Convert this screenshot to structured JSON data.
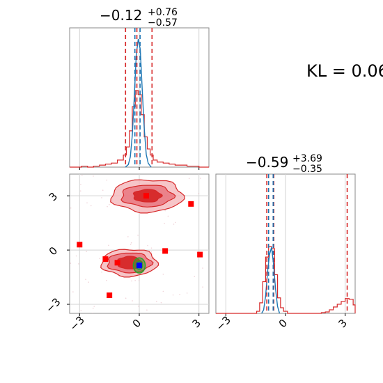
{
  "kl_label": "KL = 0.06",
  "chart_data": [
    {
      "type": "histogram",
      "panel": "marginal-param-1",
      "title": {
        "main": "−0.12",
        "plus": "+0.76",
        "minus": "−0.57"
      },
      "xlim": [
        -3.5,
        3.5
      ],
      "grid": true,
      "colors": {
        "reference": "#d62728",
        "estimate": "#1f77b4"
      },
      "series": [
        {
          "color": "#d62728",
          "bins": [
            [
              -3.5,
              0.0
            ],
            [
              -3.2,
              0.0
            ],
            [
              -2.9,
              0.005
            ],
            [
              -2.6,
              0.0
            ],
            [
              -2.3,
              0.005
            ],
            [
              -2.0,
              0.01
            ],
            [
              -1.7,
              0.015
            ],
            [
              -1.4,
              0.02
            ],
            [
              -1.1,
              0.035
            ],
            [
              -0.8,
              0.06
            ],
            [
              -0.65,
              0.1
            ],
            [
              -0.5,
              0.18
            ],
            [
              -0.35,
              0.3
            ],
            [
              -0.2,
              0.38
            ],
            [
              -0.05,
              0.36
            ],
            [
              0.1,
              0.26
            ],
            [
              0.25,
              0.15
            ],
            [
              0.4,
              0.09
            ],
            [
              0.55,
              0.06
            ],
            [
              0.7,
              0.035
            ],
            [
              0.9,
              0.025
            ],
            [
              1.2,
              0.02
            ],
            [
              1.5,
              0.015
            ],
            [
              1.8,
              0.01
            ],
            [
              2.1,
              0.01
            ],
            [
              2.4,
              0.005
            ],
            [
              2.7,
              0.005
            ],
            [
              3.0,
              0.0
            ],
            [
              3.3,
              0.0
            ],
            [
              3.5,
              0.0
            ]
          ],
          "quantiles": [
            -0.69,
            -0.12,
            0.64
          ]
        },
        {
          "color": "#1f77b4",
          "curve": [
            [
              -0.7,
              0.0
            ],
            [
              -0.55,
              0.02
            ],
            [
              -0.45,
              0.08
            ],
            [
              -0.35,
              0.25
            ],
            [
              -0.25,
              0.55
            ],
            [
              -0.15,
              0.88
            ],
            [
              -0.05,
              1.0
            ],
            [
              0.05,
              0.92
            ],
            [
              0.15,
              0.6
            ],
            [
              0.25,
              0.3
            ],
            [
              0.35,
              0.1
            ],
            [
              0.45,
              0.03
            ],
            [
              0.6,
              0.0
            ]
          ],
          "quantiles": [
            -0.22,
            0.04
          ]
        }
      ]
    },
    {
      "type": "histogram",
      "panel": "marginal-param-2",
      "title": {
        "main": "−0.59",
        "plus": "+3.69",
        "minus": "−0.35"
      },
      "xlim": [
        -3.5,
        3.5
      ],
      "grid": true,
      "series": [
        {
          "color": "#d62728",
          "bins": [
            [
              -3.5,
              0.0
            ],
            [
              -1.6,
              0.0
            ],
            [
              -1.45,
              0.03
            ],
            [
              -1.3,
              0.15
            ],
            [
              -1.15,
              0.45
            ],
            [
              -1.0,
              0.8
            ],
            [
              -0.85,
              0.95
            ],
            [
              -0.7,
              0.92
            ],
            [
              -0.55,
              0.55
            ],
            [
              -0.4,
              0.22
            ],
            [
              -0.25,
              0.08
            ],
            [
              -0.1,
              0.03
            ],
            [
              0.1,
              0.0
            ],
            [
              1.6,
              0.0
            ],
            [
              1.8,
              0.01
            ],
            [
              2.0,
              0.02
            ],
            [
              2.2,
              0.05
            ],
            [
              2.4,
              0.09
            ],
            [
              2.6,
              0.13
            ],
            [
              2.8,
              0.17
            ],
            [
              3.0,
              0.21
            ],
            [
              3.2,
              0.2
            ],
            [
              3.4,
              0.12
            ],
            [
              3.5,
              0.05
            ]
          ],
          "quantiles": [
            -0.94,
            -0.59,
            3.1
          ]
        },
        {
          "color": "#1f77b4",
          "curve": [
            [
              -1.2,
              0.0
            ],
            [
              -1.1,
              0.05
            ],
            [
              -1.0,
              0.25
            ],
            [
              -0.9,
              0.6
            ],
            [
              -0.8,
              0.85
            ],
            [
              -0.7,
              0.95
            ],
            [
              -0.6,
              0.7
            ],
            [
              -0.5,
              0.35
            ],
            [
              -0.4,
              0.1
            ],
            [
              -0.3,
              0.0
            ]
          ],
          "quantiles": [
            -0.85,
            -0.62
          ]
        }
      ]
    },
    {
      "type": "scatter",
      "panel": "joint",
      "xlim": [
        -3.5,
        3.5
      ],
      "ylim": [
        -3.5,
        4.2
      ],
      "ticks": [
        "−3",
        "0",
        "3"
      ],
      "tick_values": [
        -3,
        0,
        3
      ],
      "grid": true,
      "contours": [
        {
          "cx": 0.4,
          "cy": 3.0,
          "levels": [
            [
              1.8,
              0.9
            ],
            [
              1.3,
              0.6
            ],
            [
              0.7,
              0.35
            ]
          ]
        },
        {
          "cx": -0.5,
          "cy": -0.7,
          "levels": [
            [
              1.4,
              0.75
            ],
            [
              1.1,
              0.55
            ],
            [
              0.6,
              0.35
            ]
          ]
        }
      ],
      "points_red": [
        [
          0.35,
          3.0
        ],
        [
          2.6,
          2.55
        ],
        [
          -3.0,
          0.3
        ],
        [
          -1.7,
          -0.5
        ],
        [
          -1.1,
          -0.7
        ],
        [
          1.3,
          -0.05
        ],
        [
          3.05,
          -0.25
        ],
        [
          -1.5,
          -2.5
        ]
      ],
      "point_blue": [
        0.0,
        -0.85
      ],
      "green_contour": {
        "cx": 0.0,
        "cy": -0.85,
        "rx": 0.3,
        "ry": 0.42
      }
    }
  ]
}
